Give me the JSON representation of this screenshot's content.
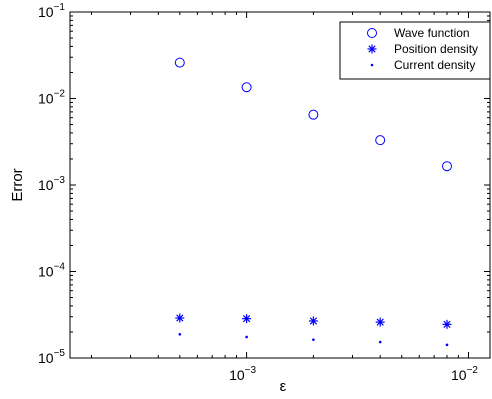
{
  "chart_data": {
    "type": "scatter",
    "xscale": "log",
    "yscale": "log",
    "xlabel": "ε",
    "ylabel": "Error",
    "xlim": [
      0.00016,
      0.0125
    ],
    "ylim": [
      1e-05,
      0.1
    ],
    "x_ticks": [
      {
        "value": 0.001,
        "base": "10",
        "exp": "−3"
      },
      {
        "value": 0.01,
        "base": "10",
        "exp": "−2"
      }
    ],
    "y_ticks": [
      {
        "value": 1e-05,
        "base": "10",
        "exp": "−5"
      },
      {
        "value": 0.0001,
        "base": "10",
        "exp": "−4"
      },
      {
        "value": 0.001,
        "base": "10",
        "exp": "−3"
      },
      {
        "value": 0.01,
        "base": "10",
        "exp": "−2"
      },
      {
        "value": 0.1,
        "base": "10",
        "exp": "−1"
      }
    ],
    "grid": false,
    "legend_position": "top-right",
    "series": [
      {
        "name": "Wave function",
        "marker": "circle",
        "color": "#0000ff",
        "x": [
          0.0005,
          0.001,
          0.002,
          0.004,
          0.008
        ],
        "y": [
          0.026,
          0.0135,
          0.0065,
          0.0033,
          0.00165
        ]
      },
      {
        "name": "Position density",
        "marker": "star",
        "color": "#0000ff",
        "x": [
          0.0005,
          0.001,
          0.002,
          0.004,
          0.008
        ],
        "y": [
          2.9e-05,
          2.85e-05,
          2.68e-05,
          2.6e-05,
          2.45e-05
        ]
      },
      {
        "name": "Current density",
        "marker": "dot",
        "color": "#0000ff",
        "x": [
          0.0005,
          0.001,
          0.002,
          0.004,
          0.008
        ],
        "y": [
          1.88e-05,
          1.75e-05,
          1.63e-05,
          1.53e-05,
          1.42e-05
        ]
      }
    ]
  }
}
